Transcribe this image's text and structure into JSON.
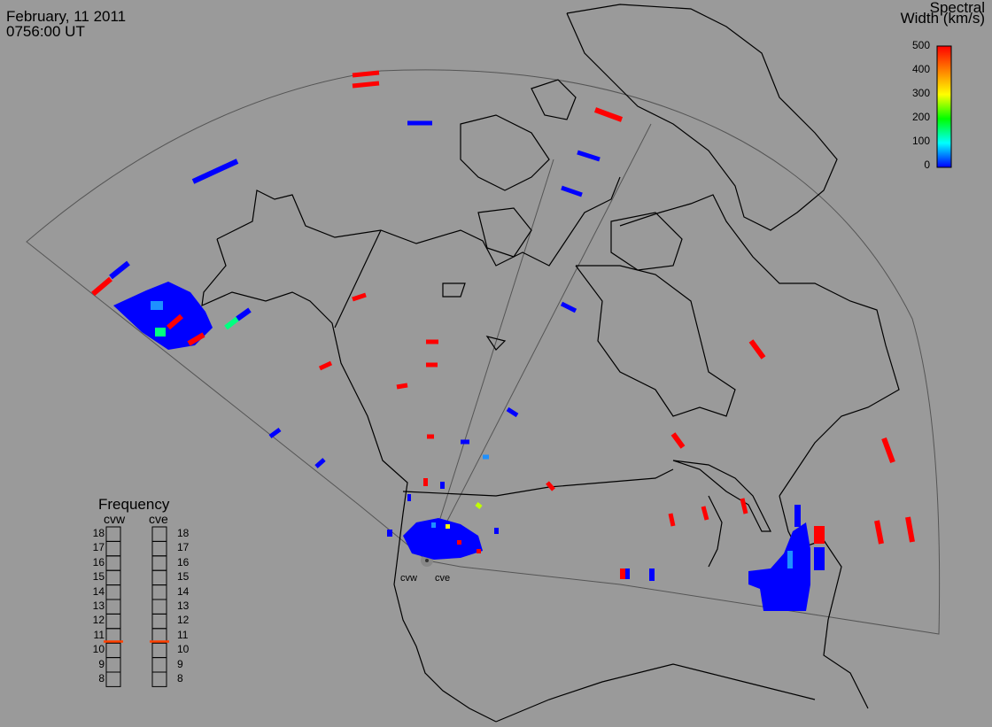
{
  "header": {
    "date": "February, 11 2011",
    "time": "0756:00 UT"
  },
  "colorbar": {
    "title_line1": "Spectral",
    "title_line2": "Width (km/s)",
    "ticks": [
      "500",
      "400",
      "300",
      "200",
      "100",
      "0"
    ],
    "colors": [
      "#ff0000",
      "#ff8000",
      "#ffff00",
      "#00ff00",
      "#00ffff",
      "#0000ff"
    ]
  },
  "frequency_panel": {
    "title": "Frequency",
    "radars": [
      "cvw",
      "cve"
    ],
    "levels": [
      "18",
      "17",
      "16",
      "15",
      "14",
      "13",
      "12",
      "11",
      "10",
      "9",
      "8"
    ],
    "current_mhz": {
      "cvw": 10.6,
      "cve": 10.6
    },
    "marker_color": "#ff4000"
  },
  "radar_sites": [
    "cvw",
    "cve"
  ],
  "colors": {
    "background": "#9a9a9a",
    "coast": "#000000",
    "fov": "#505050"
  }
}
